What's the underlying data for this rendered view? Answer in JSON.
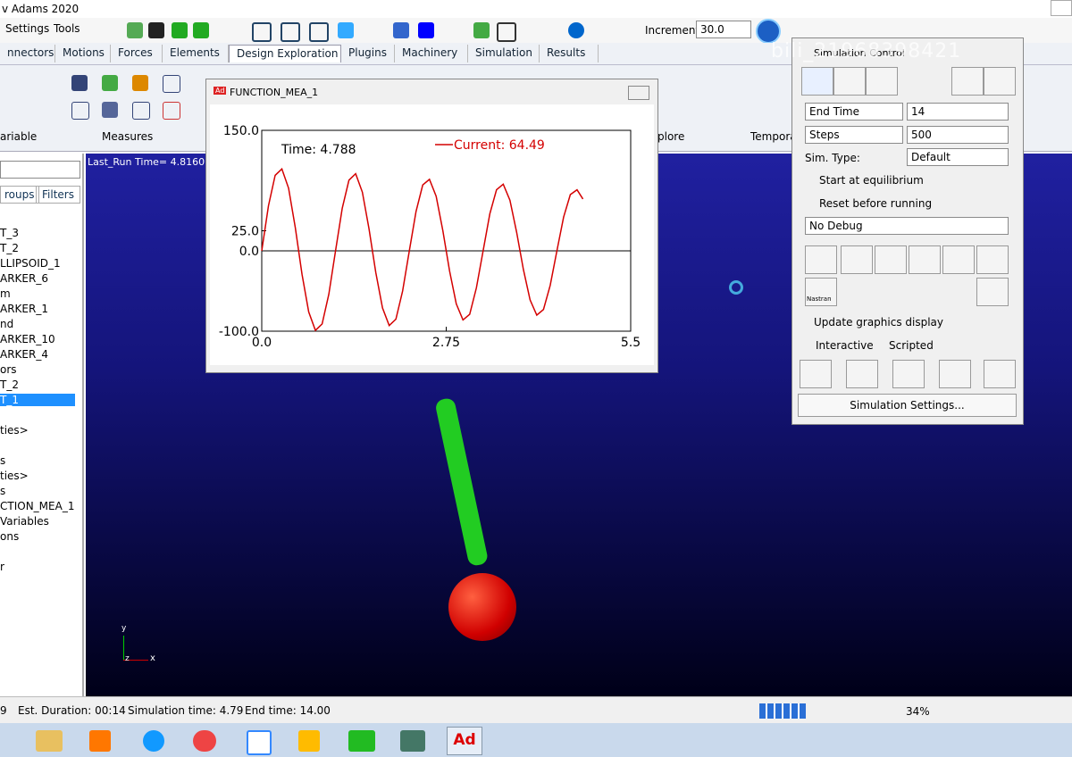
{
  "window": {
    "title": "v Adams 2020",
    "menu": [
      "Settings",
      "Tools"
    ],
    "increment_label": "Increment",
    "increment_value": "30.0"
  },
  "tabs": [
    "nnectors",
    "Motions",
    "Forces",
    "Elements",
    "Design Exploration",
    "Plugins",
    "Machinery",
    "Simulation",
    "Results"
  ],
  "ribbon_groups": [
    "ariable",
    "Measures",
    "plore",
    "Tempora"
  ],
  "left_panel": {
    "tabs": [
      "roups",
      "Filters"
    ],
    "tree": [
      "T_3",
      "T_2",
      "LLIPSOID_1",
      "ARKER_6",
      "m",
      "ARKER_1",
      "nd",
      "ARKER_10",
      "ARKER_4",
      "ors",
      "T_2",
      "T_1",
      "ties>",
      "s",
      "ties>",
      "s",
      "CTION_MEA_1",
      "Variables",
      "ons",
      "r"
    ]
  },
  "viewport": {
    "label": "Last_Run   Time= 4.8160",
    "triad": [
      "y",
      "z",
      "x"
    ]
  },
  "plot_window": {
    "title": "FUNCTION_MEA_1",
    "icon": "Ad"
  },
  "chart_data": {
    "type": "line",
    "annotations": [
      "Time:  4.788"
    ],
    "x": [
      0,
      0.1,
      0.2,
      0.3,
      0.4,
      0.5,
      0.6,
      0.7,
      0.8,
      0.9,
      1.0,
      1.1,
      1.2,
      1.3,
      1.4,
      1.5,
      1.6,
      1.7,
      1.8,
      1.9,
      2.0,
      2.1,
      2.2,
      2.3,
      2.4,
      2.5,
      2.6,
      2.7,
      2.8,
      2.9,
      3.0,
      3.1,
      3.2,
      3.3,
      3.4,
      3.5,
      3.6,
      3.7,
      3.8,
      3.9,
      4.0,
      4.1,
      4.2,
      4.3,
      4.4,
      4.5,
      4.6,
      4.7,
      4.788
    ],
    "series": [
      {
        "name": "Current:  64.49",
        "color": "#d40000",
        "values": [
          0,
          56,
          94,
          102,
          78,
          29,
          -29,
          -76,
          -99,
          -91,
          -54,
          0,
          53,
          88,
          96,
          73,
          27,
          -27,
          -71,
          -93,
          -85,
          -50,
          0,
          49,
          82,
          89,
          68,
          25,
          -25,
          -66,
          -86,
          -79,
          -46,
          0,
          46,
          76,
          83,
          63,
          23,
          -23,
          -61,
          -80,
          -73,
          -43,
          0,
          42,
          70,
          76,
          64.49
        ]
      }
    ],
    "xlim": [
      0,
      5.5
    ],
    "ylim": [
      -100,
      150
    ],
    "xticks": [
      {
        "value": 0,
        "label": "0.0"
      },
      2.75,
      5.5
    ],
    "yticks": [
      {
        "value": 150,
        "label": "150.0"
      },
      {
        "value": 25,
        "label": "25.0"
      },
      {
        "value": 0,
        "label": "0.0"
      },
      {
        "value": -100,
        "label": "-100.0"
      }
    ]
  },
  "sim_control": {
    "title": "Simulation Control",
    "watermark": "bili_21968398421",
    "end_mode": "End Time",
    "end_value": "14",
    "steps_mode": "Steps",
    "steps_value": "500",
    "sim_type_label": "Sim. Type:",
    "sim_type": "Default",
    "start_eq": "Start at equilibrium",
    "reset": "Reset before running",
    "debug": "No Debug",
    "nastran": "Nastran",
    "update": "Update graphics display",
    "interactive": "Interactive",
    "scripted": "Scripted",
    "settings": "Simulation Settings..."
  },
  "status": [
    "9",
    "Est. Duration: 00:14",
    "Simulation time: 4.79",
    "End time: 14.00"
  ],
  "tray": {
    "percent": "34%"
  },
  "taskbar": {
    "adams": "Ad"
  }
}
